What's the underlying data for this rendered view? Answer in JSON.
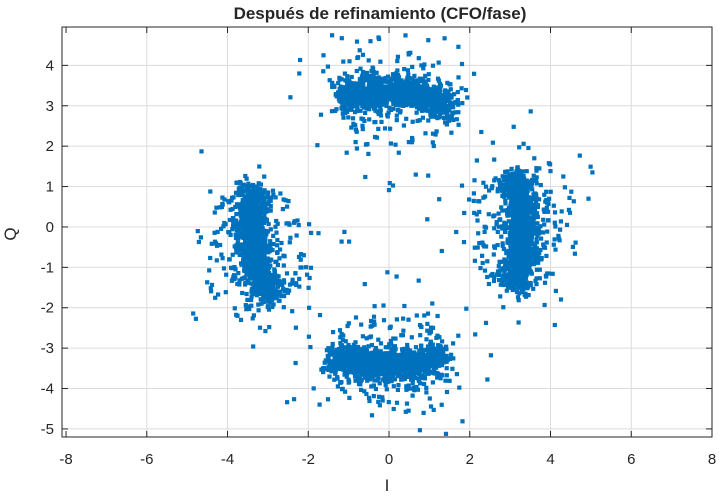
{
  "chart_data": {
    "type": "scatter",
    "title": "Después de refinamiento (CFO/fase)",
    "xlabel": "I",
    "ylabel": "Q",
    "xlim": [
      -8.1,
      8
    ],
    "ylim": [
      -5.2,
      4.95
    ],
    "xticks": [
      -8,
      -6,
      -4,
      -2,
      0,
      2,
      4,
      6,
      8
    ],
    "yticks": [
      -5,
      -4,
      -3,
      -2,
      -1,
      0,
      1,
      2,
      3,
      4
    ],
    "xtick_labels": [
      "-8",
      "-6",
      "-4",
      "-2",
      "0",
      "2",
      "4",
      "6",
      "8"
    ],
    "ytick_labels": [
      "-5",
      "-4",
      "-3",
      "-2",
      "-1",
      "0",
      "1",
      "2",
      "3",
      "4"
    ],
    "grid": true,
    "marker_color": "#0072BD",
    "clusters": [
      {
        "center": [
          0.2,
          3.35
        ],
        "spread_tangential": 1.35,
        "spread_radial": 0.18
      },
      {
        "center": [
          3.35,
          -0.05
        ],
        "spread_tangential": 1.35,
        "spread_radial": 0.18
      },
      {
        "center": [
          0.0,
          -3.45
        ],
        "spread_tangential": 1.35,
        "spread_radial": 0.18
      },
      {
        "center": [
          -3.4,
          -0.5
        ],
        "spread_tangential": 1.35,
        "spread_radial": 0.18
      }
    ],
    "ring_radius_mean": 3.4,
    "points_per_cluster": 1400
  }
}
